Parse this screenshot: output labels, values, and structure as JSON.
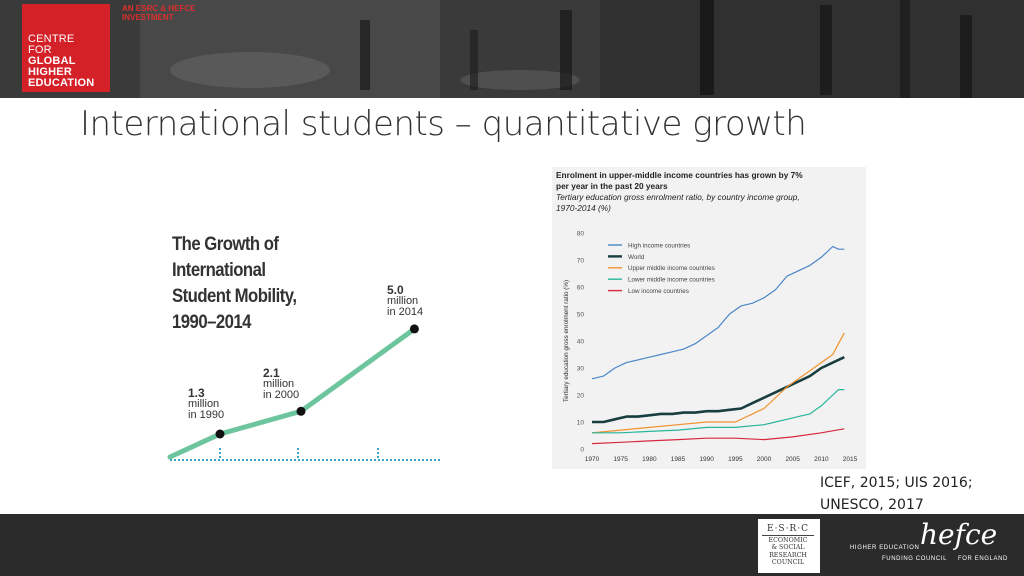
{
  "header": {
    "logo_lines": [
      "CENTRE",
      "FOR",
      "GLOBAL",
      "HIGHER",
      "EDUCATION"
    ],
    "investment_lines": [
      "AN ESRC & HEFCE",
      "INVESTMENT"
    ],
    "brand_color": "#d42027"
  },
  "slide": {
    "title": "International students – quantitative growth"
  },
  "source": {
    "lines": [
      "ICEF, 2015; UIS 2016;",
      "UNESCO, 2017"
    ]
  },
  "footer": {
    "esrc_top": "E·S·R·C",
    "esrc_lines": [
      "ECONOMIC",
      "& SOCIAL",
      "RESEARCH",
      "COUNCIL"
    ],
    "hefce_word": "hefce",
    "hefce_left": "HIGHER EDUCATION",
    "hefce_bottom_left": "FUNDING COUNCIL",
    "hefce_bottom_right": "FOR ENGLAND"
  },
  "chart_data": [
    {
      "type": "line",
      "title_lines": [
        "The Growth of",
        "International",
        "Student Mobility,",
        "1990–2014"
      ],
      "x": [
        1990,
        2000,
        2014
      ],
      "values": [
        1.3,
        2.1,
        5.0
      ],
      "ylabel": "",
      "xlabel": "",
      "line_color": "#6cc59c",
      "annotations": [
        {
          "value": "1.3",
          "lines": [
            "million",
            "in 1990"
          ]
        },
        {
          "value": "2.1",
          "lines": [
            "million",
            "in 2000"
          ]
        },
        {
          "value": "5.0",
          "lines": [
            "million",
            "in 2014"
          ]
        }
      ]
    },
    {
      "type": "line",
      "title": "Enrolment in upper-middle income countries has grown by 7% per year in the past 20 years",
      "subtitle_lines": [
        "Tertiary education gross enrolment ratio, by country income group,",
        "1970-2014 (%)"
      ],
      "title_lines": [
        "Enrolment in upper-middle income countries has grown by 7%",
        "per year in the past 20 years"
      ],
      "ylabel": "Tertiary education gross enrolment ratio (%)",
      "xlabel": "",
      "xlim": [
        1970,
        2015
      ],
      "ylim": [
        0,
        80
      ],
      "x_ticks": [
        1970,
        1975,
        1980,
        1985,
        1990,
        1995,
        2000,
        2005,
        2010,
        2015
      ],
      "y_ticks": [
        0,
        10,
        20,
        30,
        40,
        50,
        60,
        70,
        80
      ],
      "legend_position": "top-left",
      "grid": false,
      "series": [
        {
          "name": "High income countries",
          "color": "#4a86c8",
          "x": [
            1970,
            1972,
            1974,
            1976,
            1978,
            1980,
            1982,
            1984,
            1986,
            1988,
            1990,
            1992,
            1994,
            1996,
            1998,
            2000,
            2002,
            2004,
            2006,
            2008,
            2010,
            2012,
            2013,
            2014
          ],
          "values": [
            26,
            27,
            30,
            32,
            33,
            34,
            35,
            36,
            37,
            39,
            42,
            45,
            50,
            53,
            54,
            56,
            59,
            64,
            66,
            68,
            71,
            75,
            74,
            74
          ]
        },
        {
          "name": "World",
          "color": "#183e3f",
          "x": [
            1970,
            1972,
            1974,
            1976,
            1978,
            1980,
            1982,
            1984,
            1986,
            1988,
            1990,
            1992,
            1994,
            1996,
            1998,
            2000,
            2002,
            2004,
            2006,
            2008,
            2010,
            2012,
            2014
          ],
          "values": [
            10,
            10,
            11,
            12,
            12,
            12.5,
            13,
            13,
            13.5,
            13.5,
            14,
            14,
            14.5,
            15,
            17,
            19,
            21,
            23,
            25,
            27,
            30,
            32,
            34
          ]
        },
        {
          "name": "Upper middle income countries",
          "color": "#f2922d",
          "x": [
            1970,
            1975,
            1980,
            1985,
            1990,
            1995,
            1998,
            2000,
            2002,
            2004,
            2006,
            2008,
            2010,
            2012,
            2013,
            2014
          ],
          "values": [
            6,
            7,
            8,
            9,
            10,
            10,
            13,
            15,
            19,
            23,
            26,
            29,
            32,
            35,
            39,
            43
          ]
        },
        {
          "name": "Lower middle income countries",
          "color": "#27b59a",
          "x": [
            1970,
            1975,
            1980,
            1985,
            1990,
            1995,
            2000,
            2002,
            2004,
            2006,
            2008,
            2010,
            2012,
            2013,
            2014
          ],
          "values": [
            6,
            6,
            6.5,
            7,
            8,
            8,
            9,
            10,
            11,
            12,
            13,
            16,
            20,
            22,
            22
          ]
        },
        {
          "name": "Low income countries",
          "color": "#d8283e",
          "x": [
            1970,
            1975,
            1980,
            1985,
            1990,
            1995,
            2000,
            2005,
            2010,
            2014
          ],
          "values": [
            2,
            2.5,
            3,
            3.5,
            4,
            4,
            3.5,
            4.5,
            6,
            7.5
          ]
        }
      ]
    }
  ]
}
